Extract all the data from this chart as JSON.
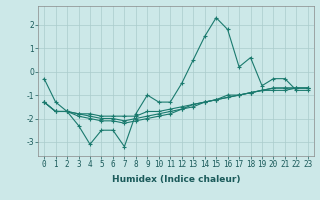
{
  "xlabel": "Humidex (Indice chaleur)",
  "background_color": "#cce8e8",
  "grid_color": "#aacccc",
  "line_color": "#1a7a6e",
  "x": [
    0,
    1,
    2,
    3,
    4,
    5,
    6,
    7,
    8,
    9,
    10,
    11,
    12,
    13,
    14,
    15,
    16,
    17,
    18,
    19,
    20,
    21,
    22,
    23
  ],
  "series1": [
    -0.3,
    -1.3,
    -1.7,
    -2.3,
    -3.1,
    -2.5,
    -2.5,
    -3.2,
    -1.8,
    -1.0,
    -1.3,
    -1.3,
    -0.5,
    0.5,
    1.5,
    2.3,
    1.8,
    0.2,
    0.6,
    -0.6,
    -0.3,
    -0.3,
    -0.8,
    -0.8
  ],
  "series2": [
    -1.3,
    -1.7,
    -1.7,
    -1.8,
    -1.8,
    -1.9,
    -1.9,
    -1.9,
    -1.9,
    -1.7,
    -1.7,
    -1.6,
    -1.5,
    -1.4,
    -1.3,
    -1.2,
    -1.0,
    -1.0,
    -0.9,
    -0.8,
    -0.8,
    -0.8,
    -0.7,
    -0.7
  ],
  "series3": [
    -1.3,
    -1.7,
    -1.7,
    -1.8,
    -1.9,
    -2.0,
    -2.0,
    -2.1,
    -2.0,
    -1.9,
    -1.8,
    -1.7,
    -1.6,
    -1.4,
    -1.3,
    -1.2,
    -1.1,
    -1.0,
    -0.9,
    -0.8,
    -0.7,
    -0.7,
    -0.7,
    -0.7
  ],
  "series4": [
    -1.3,
    -1.7,
    -1.7,
    -1.9,
    -2.0,
    -2.1,
    -2.1,
    -2.2,
    -2.1,
    -2.0,
    -1.9,
    -1.8,
    -1.6,
    -1.5,
    -1.3,
    -1.2,
    -1.1,
    -1.0,
    -0.9,
    -0.8,
    -0.7,
    -0.7,
    -0.7,
    -0.7
  ],
  "ylim": [
    -3.6,
    2.8
  ],
  "yticks": [
    -3,
    -2,
    -1,
    0,
    1,
    2
  ],
  "xtick_labels": [
    "0",
    "1",
    "2",
    "3",
    "4",
    "5",
    "6",
    "7",
    "8",
    "9",
    "10",
    "11",
    "12",
    "13",
    "14",
    "15",
    "16",
    "17",
    "18",
    "19",
    "20",
    "21",
    "22",
    "23"
  ],
  "label_fontsize": 6.5,
  "tick_fontsize": 5.5
}
